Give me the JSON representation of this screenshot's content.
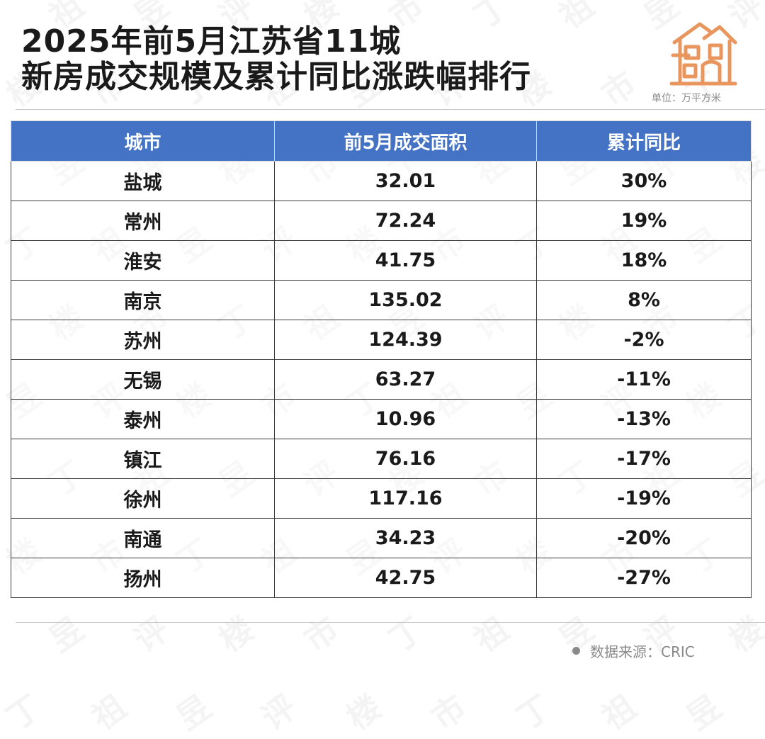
{
  "title_lines": [
    "2025年前5月江苏省11城",
    "新房成交规模及累计同比涨跌幅排行"
  ],
  "unit_label": "单位：",
  "unit_value": "万平方米",
  "source_text": "数据来源：CRIC",
  "watermark_text": "丁祖昱评楼市",
  "colors": {
    "header_bg": "#4472c4",
    "logo": "#e8955e",
    "text": "#1a1a1a",
    "muted": "#8a8a8a"
  },
  "icons": {
    "logo": "house-icon",
    "source_bullet": "dot-icon"
  },
  "chart_data": {
    "type": "table",
    "title": "2025年前5月江苏省11城新房成交规模及累计同比涨跌幅排行",
    "columns": [
      "城市",
      "前5月成交面积",
      "累计同比"
    ],
    "rows": [
      [
        "盐城",
        "32.01",
        "30%"
      ],
      [
        "常州",
        "72.24",
        "19%"
      ],
      [
        "淮安",
        "41.75",
        "18%"
      ],
      [
        "南京",
        "135.02",
        "8%"
      ],
      [
        "苏州",
        "124.39",
        "-2%"
      ],
      [
        "无锡",
        "63.27",
        "-11%"
      ],
      [
        "泰州",
        "10.96",
        "-13%"
      ],
      [
        "镇江",
        "76.16",
        "-17%"
      ],
      [
        "徐州",
        "117.16",
        "-19%"
      ],
      [
        "南通",
        "34.23",
        "-20%"
      ],
      [
        "扬州",
        "42.75",
        "-27%"
      ]
    ]
  }
}
